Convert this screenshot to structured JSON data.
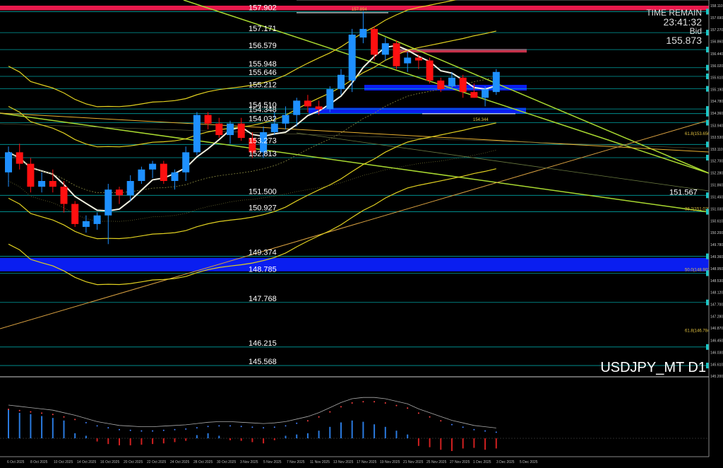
{
  "chart_data": {
    "type": "candlestick",
    "symbol": "USDJPY_MT D1",
    "countdown": {
      "label": "TIME REMAIN",
      "value": "23:41:32"
    },
    "bid": {
      "label": "Bid",
      "value": "155.873"
    },
    "price_axis_ticks": [
      "158.110",
      "157.690",
      "157.270",
      "156.860",
      "156.440",
      "156.020",
      "155.610",
      "155.190",
      "154.780",
      "154.360",
      "153.940",
      "153.530",
      "153.110",
      "152.700",
      "152.280",
      "151.860",
      "151.450",
      "151.030",
      "150.610",
      "150.200",
      "149.780",
      "149.360",
      "148.950",
      "148.530",
      "148.120",
      "147.700",
      "147.280",
      "146.870",
      "146.450",
      "146.030",
      "145.610",
      "145.200"
    ],
    "ylim": [
      145.2,
      158.11
    ],
    "levels": [
      {
        "value": 157.902,
        "label": "157.902",
        "color": "#00c8c8"
      },
      {
        "value": 157.171,
        "label": "157.171",
        "color": "#00c8c8"
      },
      {
        "value": 156.579,
        "label": "156.579",
        "color": "#00c8c8"
      },
      {
        "value": 155.948,
        "label": "155.948",
        "color": "#00c8c8"
      },
      {
        "value": 155.646,
        "label": "155.646",
        "color": "#00c8c8"
      },
      {
        "value": 155.212,
        "label": "155.212",
        "color": "#00c8c8"
      },
      {
        "value": 154.51,
        "label": "154.510",
        "color": "#00c8c8"
      },
      {
        "value": 154.348,
        "label": "154.348",
        "color": "#00c8c8"
      },
      {
        "value": 154.032,
        "label": "154.032",
        "color": "#00c8c8"
      },
      {
        "value": 153.273,
        "label": "153.273",
        "color": "#00c8c8"
      },
      {
        "value": 152.813,
        "label": "152.813",
        "color": "#00c8c8"
      },
      {
        "value": 151.5,
        "label": "151.500",
        "color": "#00c8c8"
      },
      {
        "value": 150.927,
        "label": "150.927",
        "color": "#00c8c8"
      },
      {
        "value": 149.374,
        "label": "149.374",
        "color": "#00c8c8"
      },
      {
        "value": 148.785,
        "label": "148.785",
        "color": "#00c8c8"
      },
      {
        "value": 147.768,
        "label": "147.768",
        "color": "#00c8c8"
      },
      {
        "value": 146.215,
        "label": "146.215",
        "color": "#00c8c8"
      },
      {
        "value": 145.568,
        "label": "145.568",
        "color": "#00c8c8"
      }
    ],
    "zones": [
      {
        "from": 157.95,
        "to": 158.11,
        "color": "#e8194b"
      },
      {
        "from": 148.85,
        "to": 149.32,
        "color": "#0a1ef0"
      }
    ],
    "small_labels": [
      {
        "text": "157.894",
        "price": 157.89
      },
      {
        "text": "154.344",
        "price": 154.344
      },
      {
        "text": "151.567",
        "price": 151.567
      },
      {
        "text": "61.8(153.656)",
        "price": 153.656
      },
      {
        "text": "38.2(151.029)",
        "price": 151.029
      },
      {
        "text": "50.0(148.902)",
        "price": 148.902
      },
      {
        "text": "61.8(146.784)",
        "price": 146.784
      }
    ],
    "x_dates": [
      "6 Oct 2025",
      "8 Oct 2025",
      "10 Oct 2025",
      "14 Oct 2025",
      "16 Oct 2025",
      "20 Oct 2025",
      "22 Oct 2025",
      "24 Oct 2025",
      "28 Oct 2025",
      "30 Oct 2025",
      "3 Nov 2025",
      "5 Nov 2025",
      "7 Nov 2025",
      "11 Nov 2025",
      "13 Nov 2025",
      "17 Nov 2025",
      "19 Nov 2025",
      "21 Nov 2025",
      "25 Nov 2025",
      "27 Nov 2025",
      "1 Dec 2025",
      "3 Dec 2025",
      "5 Dec 2025"
    ],
    "candles": [
      {
        "o": 152.3,
        "h": 153.2,
        "l": 151.8,
        "c": 153.0
      },
      {
        "o": 153.0,
        "h": 153.3,
        "l": 152.4,
        "c": 152.6
      },
      {
        "o": 152.6,
        "h": 152.8,
        "l": 151.6,
        "c": 151.8
      },
      {
        "o": 151.8,
        "h": 152.3,
        "l": 151.6,
        "c": 152.0
      },
      {
        "o": 152.0,
        "h": 152.4,
        "l": 151.6,
        "c": 151.8
      },
      {
        "o": 151.8,
        "h": 152.0,
        "l": 150.9,
        "c": 151.2
      },
      {
        "o": 151.2,
        "h": 151.3,
        "l": 150.4,
        "c": 150.5
      },
      {
        "o": 150.4,
        "h": 150.8,
        "l": 150.2,
        "c": 150.6
      },
      {
        "o": 150.5,
        "h": 150.9,
        "l": 150.3,
        "c": 150.8
      },
      {
        "o": 150.8,
        "h": 151.9,
        "l": 149.8,
        "c": 151.7
      },
      {
        "o": 151.7,
        "h": 151.8,
        "l": 151.2,
        "c": 151.5
      },
      {
        "o": 151.5,
        "h": 152.2,
        "l": 151.3,
        "c": 152.0
      },
      {
        "o": 152.0,
        "h": 152.5,
        "l": 151.9,
        "c": 152.4
      },
      {
        "o": 152.4,
        "h": 152.7,
        "l": 152.1,
        "c": 152.6
      },
      {
        "o": 152.6,
        "h": 152.7,
        "l": 151.9,
        "c": 152.0
      },
      {
        "o": 152.0,
        "h": 152.4,
        "l": 151.7,
        "c": 152.3
      },
      {
        "o": 152.3,
        "h": 153.2,
        "l": 152.0,
        "c": 153.0
      },
      {
        "o": 153.0,
        "h": 154.4,
        "l": 152.9,
        "c": 154.3
      },
      {
        "o": 154.3,
        "h": 154.4,
        "l": 153.8,
        "c": 154.0
      },
      {
        "o": 154.0,
        "h": 154.2,
        "l": 153.5,
        "c": 153.6
      },
      {
        "o": 153.6,
        "h": 154.1,
        "l": 153.3,
        "c": 154.0
      },
      {
        "o": 154.0,
        "h": 154.2,
        "l": 153.4,
        "c": 153.5
      },
      {
        "o": 153.5,
        "h": 153.7,
        "l": 152.8,
        "c": 153.0
      },
      {
        "o": 153.0,
        "h": 153.9,
        "l": 152.8,
        "c": 153.7
      },
      {
        "o": 153.7,
        "h": 154.4,
        "l": 153.6,
        "c": 154.0
      },
      {
        "o": 154.0,
        "h": 154.6,
        "l": 153.8,
        "c": 154.3
      },
      {
        "o": 154.3,
        "h": 154.9,
        "l": 153.9,
        "c": 154.8
      },
      {
        "o": 154.8,
        "h": 155.0,
        "l": 154.4,
        "c": 154.6
      },
      {
        "o": 154.6,
        "h": 154.8,
        "l": 154.3,
        "c": 154.5
      },
      {
        "o": 154.5,
        "h": 155.3,
        "l": 154.4,
        "c": 155.2
      },
      {
        "o": 155.2,
        "h": 155.9,
        "l": 155.0,
        "c": 155.7
      },
      {
        "o": 155.5,
        "h": 157.3,
        "l": 155.1,
        "c": 157.1
      },
      {
        "o": 157.0,
        "h": 157.9,
        "l": 156.8,
        "c": 157.3
      },
      {
        "o": 157.3,
        "h": 157.4,
        "l": 156.2,
        "c": 156.4
      },
      {
        "o": 156.4,
        "h": 157.0,
        "l": 156.2,
        "c": 156.8
      },
      {
        "o": 156.8,
        "h": 156.9,
        "l": 155.9,
        "c": 156.0
      },
      {
        "o": 156.1,
        "h": 156.5,
        "l": 155.8,
        "c": 156.3
      },
      {
        "o": 156.3,
        "h": 156.4,
        "l": 155.9,
        "c": 156.2
      },
      {
        "o": 156.2,
        "h": 156.3,
        "l": 155.4,
        "c": 155.5
      },
      {
        "o": 155.5,
        "h": 155.6,
        "l": 155.1,
        "c": 155.2
      },
      {
        "o": 155.3,
        "h": 155.8,
        "l": 155.2,
        "c": 155.6
      },
      {
        "o": 155.6,
        "h": 155.7,
        "l": 154.9,
        "c": 155.1
      },
      {
        "o": 155.1,
        "h": 155.4,
        "l": 154.9,
        "c": 154.9
      },
      {
        "o": 154.9,
        "h": 155.3,
        "l": 154.6,
        "c": 155.2
      },
      {
        "o": 155.1,
        "h": 155.9,
        "l": 155.0,
        "c": 155.8
      }
    ],
    "macd_histogram": [
      45,
      40,
      38,
      35,
      32,
      28,
      8,
      4,
      -5,
      -9,
      -11,
      -11,
      -10,
      -9,
      -8,
      -6,
      -4,
      5,
      8,
      4,
      -3,
      -4,
      -6,
      -8,
      -3,
      4,
      6,
      8,
      12,
      18,
      25,
      28,
      26,
      22,
      18,
      12,
      6,
      -12,
      -14,
      -18,
      -20,
      -16,
      -15,
      -18,
      -16
    ],
    "macd_signal_dots": [
      30,
      28,
      26,
      24,
      22,
      18,
      14,
      9,
      4,
      1,
      -2,
      -3,
      -4,
      -4,
      -3,
      -2,
      -1,
      1,
      3,
      4,
      4,
      3,
      2,
      1,
      2,
      4,
      8,
      12,
      18,
      26,
      34,
      40,
      42,
      42,
      40,
      36,
      32,
      24,
      18,
      12,
      6,
      2,
      -2,
      -4,
      -6
    ]
  }
}
